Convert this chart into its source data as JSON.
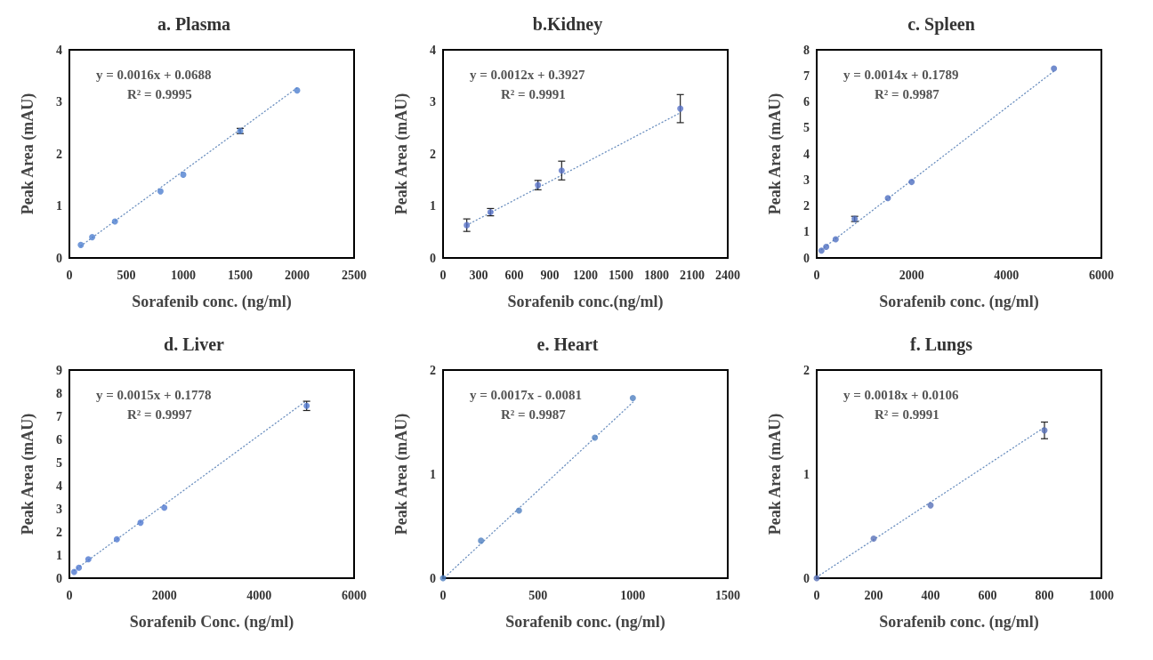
{
  "chart_data": [
    {
      "type": "scatter",
      "title": "a. Plasma",
      "xlabel": "Sorafenib conc. (ng/ml)",
      "ylabel": "Peak Area (mAU)",
      "x": [
        100,
        200,
        400,
        800,
        1000,
        1500,
        2000
      ],
      "xlim": [
        0,
        2500
      ],
      "xticks": [
        0,
        500,
        1000,
        1500,
        2000,
        2500
      ],
      "ylim": [
        0,
        4
      ],
      "yticks": [
        0,
        1,
        2,
        3,
        4
      ],
      "grid": false,
      "marker": "circle",
      "annotations": [
        "y = 0.0016x + 0.0688",
        "R² = 0.9995"
      ],
      "series": [
        {
          "color": "#4f7fcf",
          "values": [
            0.25,
            0.4,
            0.7,
            1.28,
            1.6,
            2.44,
            3.22
          ],
          "errors": [
            null,
            null,
            null,
            null,
            null,
            0.05,
            null
          ]
        },
        {
          "type": "line",
          "color": "#6b8fbf",
          "line_style": "dotted",
          "marker": "none",
          "x": [
            100,
            2000
          ],
          "values": [
            0.23,
            3.27
          ]
        }
      ]
    },
    {
      "type": "scatter",
      "title": "b.Kidney",
      "xlabel": "Sorafenib conc.(ng/ml)",
      "ylabel": "Peak Area (mAU)",
      "x": [
        200,
        400,
        800,
        1000,
        2000
      ],
      "xlim": [
        0,
        2400
      ],
      "xticks": [
        0,
        300,
        600,
        900,
        1200,
        1500,
        1800,
        2100,
        2400
      ],
      "ylim": [
        0,
        4
      ],
      "yticks": [
        0,
        1,
        2,
        3,
        4
      ],
      "grid": false,
      "marker": "circle",
      "annotations": [
        "y = 0.0012x + 0.3927",
        "R² = 0.9991"
      ],
      "series": [
        {
          "color": "#5872c8",
          "values": [
            0.63,
            0.88,
            1.4,
            1.68,
            2.87
          ],
          "errors": [
            0.12,
            0.07,
            0.09,
            0.18,
            0.27
          ]
        },
        {
          "type": "line",
          "color": "#6b8fbf",
          "line_style": "dotted",
          "marker": "none",
          "x": [
            200,
            2000
          ],
          "values": [
            0.63,
            2.79
          ]
        }
      ]
    },
    {
      "type": "scatter",
      "title": "c. Spleen",
      "xlabel": "Sorafenib conc. (ng/ml)",
      "ylabel": "Peak Area (mAU)",
      "x": [
        100,
        200,
        400,
        800,
        1500,
        2000,
        5000
      ],
      "xlim": [
        0,
        6000
      ],
      "xticks": [
        0,
        2000,
        4000,
        6000
      ],
      "ylim": [
        0,
        8
      ],
      "yticks": [
        0,
        1,
        2,
        3,
        4,
        5,
        6,
        7,
        8
      ],
      "grid": false,
      "marker": "circle",
      "annotations": [
        "y = 0.0014x + 0.1789",
        "R² = 0.9987"
      ],
      "series": [
        {
          "color": "#4f6fc0",
          "values": [
            0.28,
            0.43,
            0.72,
            1.5,
            2.3,
            2.92,
            7.28
          ],
          "errors": [
            null,
            null,
            null,
            0.1,
            null,
            null,
            null
          ]
        },
        {
          "type": "line",
          "color": "#6b8fbf",
          "line_style": "dotted",
          "marker": "none",
          "x": [
            100,
            5000
          ],
          "values": [
            0.32,
            7.18
          ]
        }
      ]
    },
    {
      "type": "scatter",
      "title": "d. Liver",
      "xlabel": "Sorafenib Conc. (ng/ml)",
      "ylabel": "Peak Area (mAU)",
      "x": [
        100,
        200,
        400,
        1000,
        1500,
        2000,
        5000
      ],
      "xlim": [
        0,
        6000
      ],
      "xticks": [
        0,
        2000,
        4000,
        6000
      ],
      "ylim": [
        0,
        9
      ],
      "yticks": [
        0,
        1,
        2,
        3,
        4,
        5,
        6,
        7,
        8,
        9
      ],
      "grid": false,
      "marker": "circle",
      "annotations": [
        "y = 0.0015x + 0.1778",
        "R² = 0.9997"
      ],
      "series": [
        {
          "color": "#4f78cf",
          "values": [
            0.27,
            0.45,
            0.82,
            1.68,
            2.4,
            3.05,
            7.45
          ],
          "errors": [
            null,
            null,
            null,
            null,
            null,
            null,
            0.2
          ]
        },
        {
          "type": "line",
          "color": "#6b8fbf",
          "line_style": "dotted",
          "marker": "none",
          "x": [
            100,
            5000
          ],
          "values": [
            0.33,
            7.68
          ]
        }
      ]
    },
    {
      "type": "scatter",
      "title": "e. Heart",
      "xlabel": "Sorafenib conc. (ng/ml)",
      "ylabel": "Peak Area (mAU)",
      "x": [
        0,
        200,
        400,
        800,
        1000
      ],
      "xlim": [
        0,
        1500
      ],
      "xticks": [
        0,
        500,
        1000,
        1500
      ],
      "ylim": [
        0,
        2
      ],
      "yticks": [
        0,
        1,
        2
      ],
      "grid": false,
      "marker": "circle",
      "annotations": [
        "y = 0.0017x - 0.0081",
        "R² = 0.9987"
      ],
      "series": [
        {
          "color": "#4f7fc0",
          "values": [
            0,
            0.36,
            0.65,
            1.35,
            1.73
          ]
        },
        {
          "type": "line",
          "color": "#6b8fbf",
          "line_style": "dotted",
          "marker": "none",
          "x": [
            10,
            1000
          ],
          "values": [
            0.01,
            1.69
          ]
        }
      ]
    },
    {
      "type": "scatter",
      "title": "f. Lungs",
      "xlabel": "Sorafenib conc. (ng/ml)",
      "ylabel": "Peak Area (mAU)",
      "x": [
        0,
        200,
        400,
        800
      ],
      "xlim": [
        0,
        1000
      ],
      "xticks": [
        0,
        200,
        400,
        600,
        800,
        1000
      ],
      "ylim": [
        0,
        2
      ],
      "yticks": [
        0,
        1,
        2
      ],
      "grid": false,
      "marker": "circle",
      "annotations": [
        "y = 0.0018x + 0.0106",
        "R² = 0.9991"
      ],
      "series": [
        {
          "color": "#5870b8",
          "values": [
            0,
            0.38,
            0.7,
            1.42
          ],
          "errors": [
            null,
            null,
            null,
            0.08
          ]
        },
        {
          "type": "line",
          "color": "#6b8fbf",
          "line_style": "dotted",
          "marker": "none",
          "x": [
            0,
            800
          ],
          "values": [
            0.01,
            1.45
          ]
        }
      ]
    }
  ]
}
